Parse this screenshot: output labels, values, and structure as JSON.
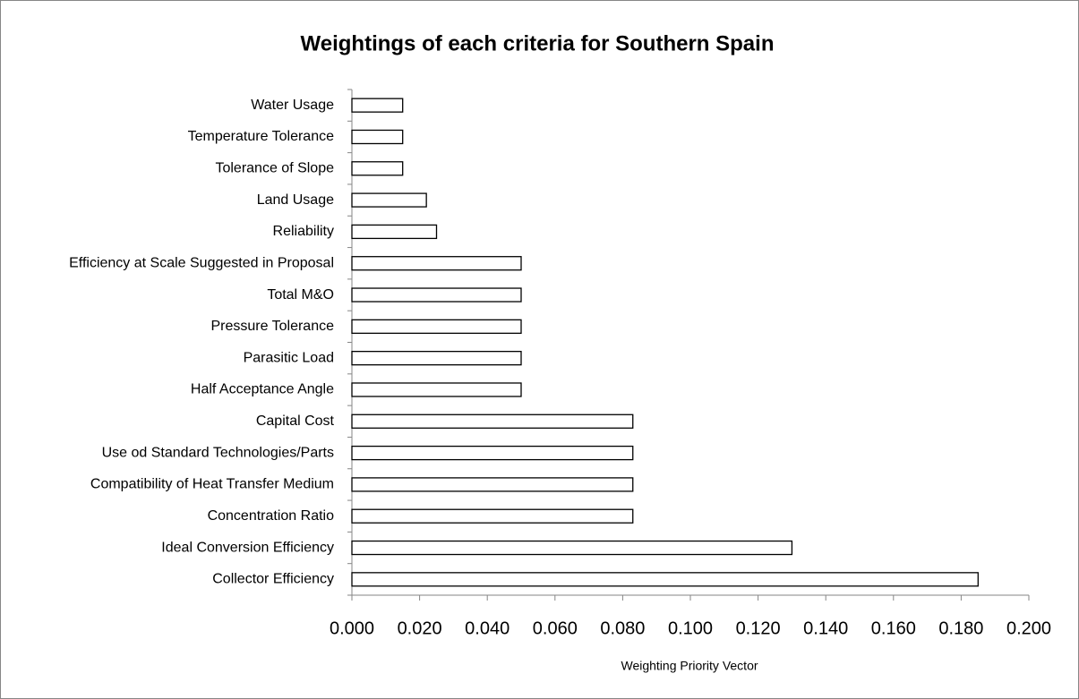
{
  "chart_data": {
    "type": "barh",
    "title": "Weightings of each criteria for Southern Spain",
    "x_label": "Weighting Priority Vector",
    "categories": [
      "Water Usage",
      "Temperature Tolerance",
      "Tolerance of Slope",
      "Land Usage",
      "Reliability",
      "Efficiency at Scale Suggested in Proposal",
      "Total M&O",
      "Pressure Tolerance",
      "Parasitic Load",
      "Half Acceptance Angle",
      "Capital Cost",
      "Use od Standard Technologies/Parts",
      "Compatibility of Heat Transfer Medium",
      "Concentration Ratio",
      "Ideal Conversion Efficiency",
      "Collector Efficiency"
    ],
    "values": [
      0.015,
      0.015,
      0.015,
      0.022,
      0.025,
      0.05,
      0.05,
      0.05,
      0.05,
      0.05,
      0.083,
      0.083,
      0.083,
      0.083,
      0.13,
      0.185
    ],
    "color": "#ffffff",
    "xlim": [
      0,
      0.2
    ],
    "xticks": [
      {
        "value": 0,
        "label": "0.000"
      },
      {
        "value": 0.02,
        "label": "0.020"
      },
      {
        "value": 0.04,
        "label": "0.040"
      },
      {
        "value": 0.06,
        "label": "0.060"
      },
      {
        "value": 0.08,
        "label": "0.080"
      },
      {
        "value": 0.1,
        "label": "0.100"
      },
      {
        "value": 0.12,
        "label": "0.120"
      },
      {
        "value": 0.14,
        "label": "0.140"
      },
      {
        "value": 0.16,
        "label": "0.160"
      },
      {
        "value": 0.18,
        "label": "0.180"
      },
      {
        "value": 0.2,
        "label": "0.200"
      }
    ],
    "grid": false
  }
}
